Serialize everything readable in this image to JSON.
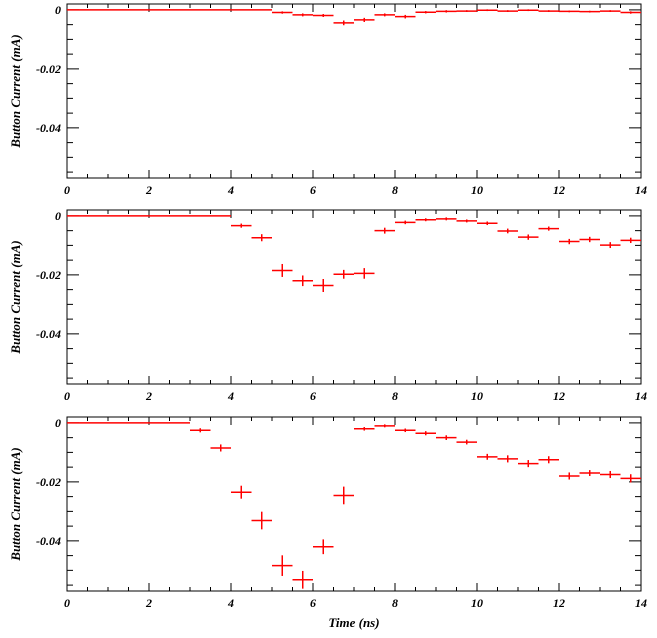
{
  "chart_data": [
    {
      "type": "scatter",
      "ylabel": "Button Current (mA)",
      "xlabel": "",
      "xlim": [
        0,
        14
      ],
      "ylim": [
        -0.057,
        0.002
      ],
      "x_ticks": [
        "0",
        "2",
        "4",
        "6",
        "8",
        "10",
        "12",
        "14"
      ],
      "y_ticks": [
        "0",
        "-0.02",
        "-0.04"
      ],
      "y_tick_values": [
        0,
        -0.02,
        -0.04
      ],
      "color": "#ff0000",
      "flat_segment": {
        "x_start": 0,
        "x_end": 5,
        "y": 0
      },
      "series": [
        {
          "x": [
            5.25,
            5.75,
            6.25,
            6.75,
            7.25,
            7.75,
            8.25,
            8.75,
            9.25,
            9.75,
            10.25,
            10.75,
            11.25,
            11.75,
            12.25,
            12.75,
            13.25,
            13.75
          ],
          "y": [
            -0.0009,
            -0.0017,
            -0.0019,
            -0.0044,
            -0.0034,
            -0.0017,
            -0.0023,
            -0.0008,
            -0.0005,
            -0.0004,
            -0.0001,
            -0.0004,
            -0.0001,
            -0.0004,
            -0.0005,
            -0.0006,
            -0.0004,
            -0.0009
          ],
          "yerr": [
            0.0004,
            0.0005,
            0.0005,
            0.0008,
            0.0007,
            0.0005,
            0.0006,
            0.0004,
            0.0004,
            0.0003,
            0.0003,
            0.0003,
            0.0003,
            0.0003,
            0.0003,
            0.0003,
            0.0003,
            0.0004
          ]
        }
      ]
    },
    {
      "type": "scatter",
      "ylabel": "Button Current (mA)",
      "xlabel": "",
      "xlim": [
        0,
        14
      ],
      "ylim": [
        -0.057,
        0.002
      ],
      "x_ticks": [
        "0",
        "2",
        "4",
        "6",
        "8",
        "10",
        "12",
        "14"
      ],
      "y_ticks": [
        "0",
        "-0.02",
        "-0.04"
      ],
      "y_tick_values": [
        0,
        -0.02,
        -0.04
      ],
      "color": "#ff0000",
      "flat_segment": {
        "x_start": 0,
        "x_end": 4,
        "y": 0
      },
      "series": [
        {
          "x": [
            4.25,
            4.75,
            5.25,
            5.75,
            6.25,
            6.75,
            7.25,
            7.75,
            8.25,
            8.75,
            9.25,
            9.75,
            10.25,
            10.75,
            11.25,
            11.75,
            12.25,
            12.75,
            13.25,
            13.75
          ],
          "y": [
            -0.0033,
            -0.0074,
            -0.0185,
            -0.022,
            -0.0236,
            -0.0198,
            -0.0195,
            -0.005,
            -0.0022,
            -0.0013,
            -0.001,
            -0.0017,
            -0.0025,
            -0.0051,
            -0.0072,
            -0.0043,
            -0.0087,
            -0.008,
            -0.0099,
            -0.0083
          ],
          "yerr": [
            0.0007,
            0.0012,
            0.0022,
            0.0018,
            0.0022,
            0.0015,
            0.0018,
            0.001,
            0.0006,
            0.0005,
            0.0005,
            0.0005,
            0.0006,
            0.0008,
            0.0009,
            0.0007,
            0.0009,
            0.0009,
            0.001,
            0.0009
          ]
        }
      ]
    },
    {
      "type": "scatter",
      "ylabel": "Button Current (mA)",
      "xlabel": "Time (ns)",
      "xlim": [
        0,
        14
      ],
      "ylim": [
        -0.057,
        0.002
      ],
      "x_ticks": [
        "0",
        "2",
        "4",
        "6",
        "8",
        "10",
        "12",
        "14"
      ],
      "y_ticks": [
        "0",
        "-0.02",
        "-0.04"
      ],
      "y_tick_values": [
        0,
        -0.02,
        -0.04
      ],
      "color": "#ff0000",
      "flat_segment": {
        "x_start": 0,
        "x_end": 3,
        "y": 0
      },
      "series": [
        {
          "x": [
            3.25,
            3.75,
            4.25,
            4.75,
            5.25,
            5.75,
            6.25,
            6.75,
            7.25,
            7.75,
            8.25,
            8.75,
            9.25,
            9.75,
            10.25,
            10.75,
            11.25,
            11.75,
            12.25,
            12.75,
            13.25,
            13.75
          ],
          "y": [
            -0.0025,
            -0.0085,
            -0.0235,
            -0.0331,
            -0.0484,
            -0.0532,
            -0.042,
            -0.0246,
            -0.002,
            -0.001,
            -0.0025,
            -0.0035,
            -0.005,
            -0.0065,
            -0.0115,
            -0.0122,
            -0.0138,
            -0.0125,
            -0.018,
            -0.017,
            -0.0175,
            -0.0188
          ],
          "yerr": [
            0.0007,
            0.0012,
            0.0022,
            0.003,
            0.0035,
            0.003,
            0.0025,
            0.003,
            0.0006,
            0.0005,
            0.0006,
            0.0007,
            0.0008,
            0.0008,
            0.001,
            0.0012,
            0.0012,
            0.0012,
            0.0012,
            0.001,
            0.0012,
            0.0014
          ]
        }
      ]
    }
  ]
}
